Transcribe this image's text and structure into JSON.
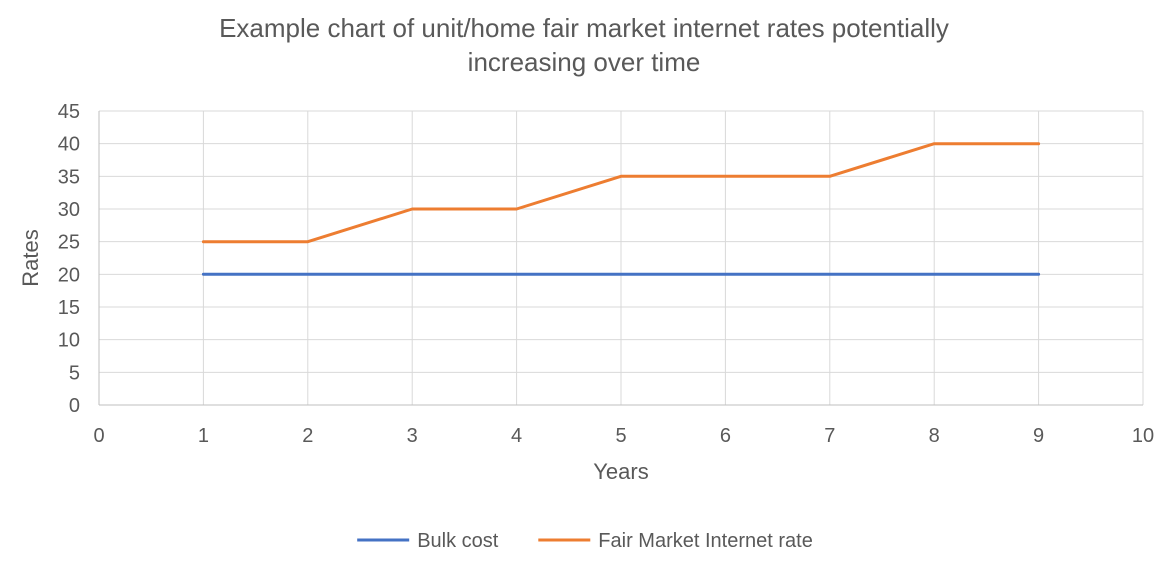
{
  "chart_data": {
    "type": "line",
    "title_lines": [
      "Example chart of unit/home fair market internet rates potentially",
      "increasing over time"
    ],
    "xlabel": "Years",
    "ylabel": "Rates",
    "xlim": [
      0,
      10
    ],
    "ylim": [
      0,
      45
    ],
    "x_ticks": [
      0,
      1,
      2,
      3,
      4,
      5,
      6,
      7,
      8,
      9,
      10
    ],
    "y_ticks": [
      0,
      5,
      10,
      15,
      20,
      25,
      30,
      35,
      40,
      45
    ],
    "grid": true,
    "legend_position": "bottom",
    "x": [
      1,
      2,
      3,
      4,
      5,
      6,
      7,
      8,
      9
    ],
    "series": [
      {
        "name": "Bulk cost",
        "color": "#4472C4",
        "values": [
          20,
          20,
          20,
          20,
          20,
          20,
          20,
          20,
          20
        ]
      },
      {
        "name": "Fair Market Internet rate",
        "color": "#ED7D31",
        "values": [
          25,
          25,
          30,
          30,
          35,
          35,
          35,
          40,
          40
        ]
      }
    ]
  }
}
